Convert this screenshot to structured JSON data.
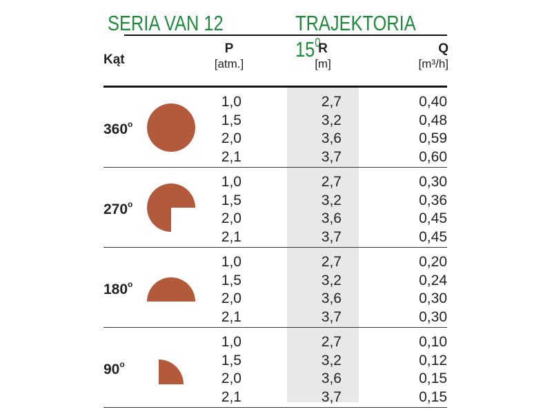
{
  "header": {
    "left_title": "SERIA VAN 12",
    "right_title": "TRAJEKTORIA 15",
    "right_title_sup": "0"
  },
  "columns": {
    "angle": "Kąt",
    "p": "P",
    "p_unit": "[atm.]",
    "r": "R",
    "r_unit": "[m]",
    "q": "Q",
    "q_unit": "[m³/h]"
  },
  "groups": [
    {
      "angle": "360",
      "deg": "o",
      "shape_icon": "full-circle-icon",
      "rows": [
        {
          "p": "1,0",
          "r": "2,7",
          "q": "0,40"
        },
        {
          "p": "1,5",
          "r": "3,2",
          "q": "0,48"
        },
        {
          "p": "2,0",
          "r": "3,6",
          "q": "0,59"
        },
        {
          "p": "2,1",
          "r": "3,7",
          "q": "0,60"
        }
      ]
    },
    {
      "angle": "270",
      "deg": "o",
      "shape_icon": "three-quarter-circle-icon",
      "rows": [
        {
          "p": "1,0",
          "r": "2,7",
          "q": "0,30"
        },
        {
          "p": "1,5",
          "r": "3,2",
          "q": "0,36"
        },
        {
          "p": "2,0",
          "r": "3,6",
          "q": "0,45"
        },
        {
          "p": "2,1",
          "r": "3,7",
          "q": "0,45"
        }
      ]
    },
    {
      "angle": "180",
      "deg": "o",
      "shape_icon": "half-circle-icon",
      "rows": [
        {
          "p": "1,0",
          "r": "2,7",
          "q": "0,20"
        },
        {
          "p": "1,5",
          "r": "3,2",
          "q": "0,24"
        },
        {
          "p": "2,0",
          "r": "3,6",
          "q": "0,30"
        },
        {
          "p": "2,1",
          "r": "3,7",
          "q": "0,30"
        }
      ]
    },
    {
      "angle": "90",
      "deg": "o",
      "shape_icon": "quarter-circle-icon",
      "rows": [
        {
          "p": "1,0",
          "r": "2,7",
          "q": "0,10"
        },
        {
          "p": "1,5",
          "r": "3,2",
          "q": "0,12"
        },
        {
          "p": "2,0",
          "r": "3,6",
          "q": "0,15"
        },
        {
          "p": "2,1",
          "r": "3,7",
          "q": "0,15"
        }
      ]
    }
  ],
  "colors": {
    "title_green": "#1f8a3c",
    "shape_fill": "#b35a3c",
    "shade_gray": "#e8e8e8"
  }
}
